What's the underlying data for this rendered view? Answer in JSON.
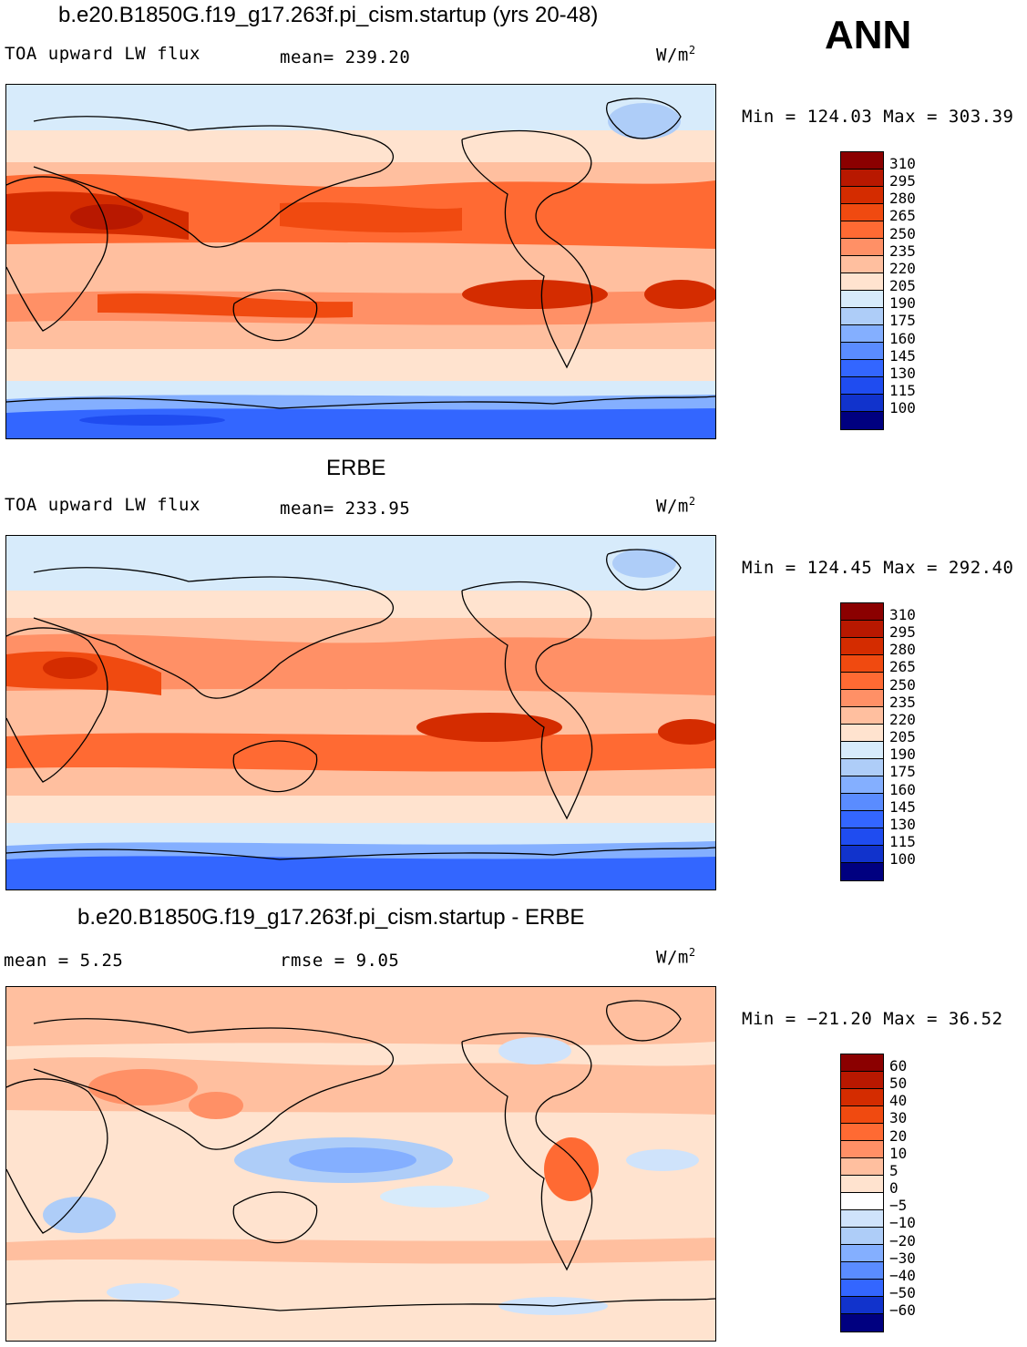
{
  "ann_label": "ANN",
  "units_base": "W/m",
  "units_exp": "2",
  "panels": [
    {
      "title": "b.e20.B1850G.f19_g17.263f.pi_cism.startup (yrs 20-48)",
      "left_label": "TOA upward LW flux",
      "mid_label": "mean=  239.20",
      "minmax": "Min  =  124.03  Max  =  303.39",
      "colorbar": {
        "labels": [
          "310",
          "295",
          "280",
          "265",
          "250",
          "235",
          "220",
          "205",
          "190",
          "175",
          "160",
          "145",
          "130",
          "115",
          "100"
        ],
        "colors": [
          "#8b0000",
          "#b81800",
          "#d42c00",
          "#f04a10",
          "#ff6a33",
          "#ff9066",
          "#ffbf9f",
          "#ffe3cf",
          "#d7ebfb",
          "#aecdf8",
          "#84afff",
          "#5a8cff",
          "#3366ff",
          "#1f4cf0",
          "#1133cc",
          "#000080"
        ]
      }
    },
    {
      "title": "ERBE",
      "left_label": "TOA upward LW flux",
      "mid_label": "mean=  233.95",
      "minmax": "Min  =  124.45  Max  =  292.40",
      "colorbar": {
        "labels": [
          "310",
          "295",
          "280",
          "265",
          "250",
          "235",
          "220",
          "205",
          "190",
          "175",
          "160",
          "145",
          "130",
          "115",
          "100"
        ],
        "colors": [
          "#8b0000",
          "#b81800",
          "#d42c00",
          "#f04a10",
          "#ff6a33",
          "#ff9066",
          "#ffbf9f",
          "#ffe3cf",
          "#d7ebfb",
          "#aecdf8",
          "#84afff",
          "#5a8cff",
          "#3366ff",
          "#1f4cf0",
          "#1133cc",
          "#000080"
        ]
      }
    },
    {
      "title": "b.e20.B1850G.f19_g17.263f.pi_cism.startup - ERBE",
      "left_label": "mean  =     5.25",
      "mid_label": "rmse  =     9.05",
      "minmax": "Min  =  −21.20  Max  =   36.52",
      "colorbar": {
        "labels": [
          "60",
          "50",
          "40",
          "30",
          "20",
          "10",
          "5",
          "0",
          "−5",
          "−10",
          "−20",
          "−30",
          "−40",
          "−50",
          "−60"
        ],
        "colors": [
          "#8b0000",
          "#b81800",
          "#d42c00",
          "#f04a10",
          "#ff6a33",
          "#ff9066",
          "#ffbf9f",
          "#ffe3cf",
          "#ffffff",
          "#cfe3fb",
          "#aecdf8",
          "#84afff",
          "#5a8cff",
          "#3366ff",
          "#1133cc",
          "#000080"
        ]
      }
    }
  ]
}
